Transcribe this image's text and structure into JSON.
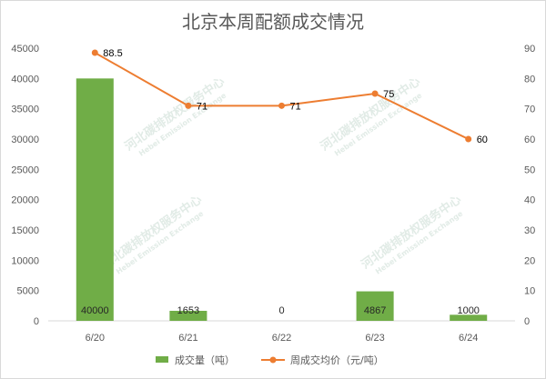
{
  "chart_data": {
    "type": "bar",
    "title": "北京本周配额成交情况",
    "categories": [
      "6/20",
      "6/21",
      "6/22",
      "6/23",
      "6/24"
    ],
    "series": [
      {
        "name": "成交量（吨）",
        "kind": "bar",
        "axis": "left",
        "color": "#70ad47",
        "values": [
          40000,
          1653,
          0,
          4867,
          1000
        ],
        "labels": [
          "40000",
          "1653",
          "0",
          "4867",
          "1000"
        ]
      },
      {
        "name": "周成交均价（元/吨）",
        "kind": "line",
        "axis": "right",
        "color": "#ed7d31",
        "values": [
          88.5,
          71,
          71,
          75,
          60
        ],
        "labels": [
          "88.5",
          "71",
          "71",
          "75",
          "60"
        ]
      }
    ],
    "y_left": {
      "ylim": [
        0,
        45000
      ],
      "ticks": [
        0,
        5000,
        10000,
        15000,
        20000,
        25000,
        30000,
        35000,
        40000,
        45000
      ],
      "tick_labels": [
        "0",
        "5000",
        "10000",
        "15000",
        "20000",
        "25000",
        "30000",
        "35000",
        "40000",
        "45000"
      ]
    },
    "y_right": {
      "ylim": [
        0,
        90
      ],
      "ticks": [
        0,
        10,
        20,
        30,
        40,
        50,
        60,
        70,
        80,
        90
      ],
      "tick_labels": [
        "0",
        "10",
        "20",
        "30",
        "40",
        "50",
        "60",
        "70",
        "80",
        "90"
      ]
    },
    "grid": false,
    "legend_position": "bottom"
  },
  "watermark": {
    "name": "河北碳排放权服务中心",
    "sub": "Hebei Emission Exchange"
  }
}
